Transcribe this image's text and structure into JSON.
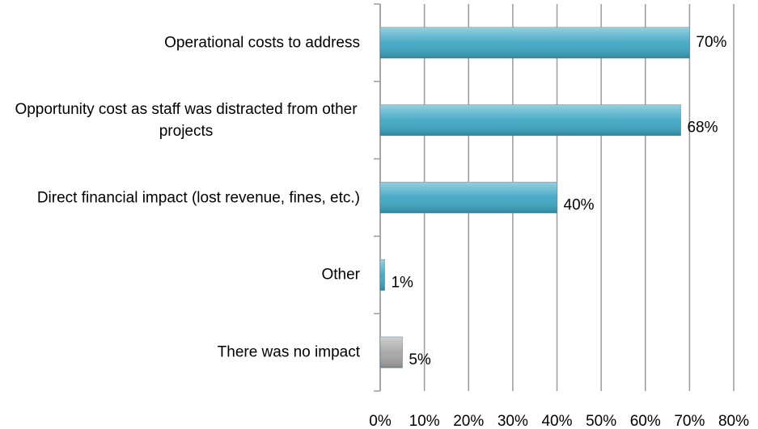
{
  "chart_data": {
    "type": "hbar",
    "categories": [
      "Operational costs to address",
      "Opportunity cost as staff was distracted from other projects",
      "Direct financial impact (lost revenue, fines, etc.)",
      "Other",
      "There was no impact"
    ],
    "values": [
      70,
      68,
      40,
      1,
      5
    ],
    "value_labels": [
      "70%",
      "68%",
      "40%",
      "1%",
      "5%"
    ],
    "colors": [
      "#3fa7c4",
      "#3fa7c4",
      "#3fa7c4",
      "#3fa7c4",
      "#a6a6a6"
    ],
    "xlim": [
      0,
      80
    ],
    "xticks": [
      {
        "value": 0,
        "label": "0%"
      },
      {
        "value": 10,
        "label": "10%"
      },
      {
        "value": 20,
        "label": "20%"
      },
      {
        "value": 30,
        "label": "30%"
      },
      {
        "value": 40,
        "label": "40%"
      },
      {
        "value": 50,
        "label": "50%"
      },
      {
        "value": 60,
        "label": "60%"
      },
      {
        "value": 70,
        "label": "70%"
      },
      {
        "value": 80,
        "label": "80%"
      }
    ],
    "grid": true
  }
}
